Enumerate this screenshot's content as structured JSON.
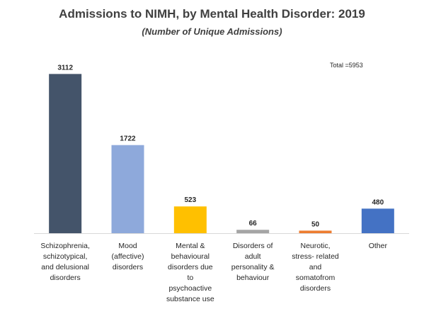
{
  "chart_data": {
    "type": "bar",
    "title": "Admissions to NIMH, by Mental Health Disorder: 2019",
    "subtitle": "(Number of Unique Admissions)",
    "annotation": "Total =5953",
    "categories": [
      "Schizophrenia, schizotypical, and delusional disorders",
      "Mood (affective) disorders",
      "Mental & behavioural disorders due to psychoactive substance use",
      "Disorders of adult personality & behaviour",
      "Neurotic, stress- related and somatofrom disorders",
      "Other"
    ],
    "category_lines": [
      [
        "Schizophrenia,",
        "schizotypical,",
        "and delusional",
        "disorders"
      ],
      [
        "Mood",
        "(affective)",
        "disorders"
      ],
      [
        "Mental &",
        "behavioural",
        "disorders due",
        "to",
        "psychoactive",
        "substance use"
      ],
      [
        "Disorders of",
        "adult",
        "personality &",
        "behaviour"
      ],
      [
        "Neurotic,",
        "stress- related",
        "and",
        "somatofrom",
        "disorders"
      ],
      [
        "Other"
      ]
    ],
    "values": [
      3112,
      1722,
      523,
      66,
      50,
      480
    ],
    "data_labels": [
      "3112",
      "1722",
      "523",
      "66",
      "50",
      "480"
    ],
    "colors": [
      "#44546A",
      "#8EA9DB",
      "#FFC000",
      "#A5A5A5",
      "#ED7D31",
      "#4472C4"
    ],
    "xlabel": "",
    "ylabel": "",
    "ylim": [
      0,
      3200
    ],
    "grid": false,
    "legend": "none"
  }
}
